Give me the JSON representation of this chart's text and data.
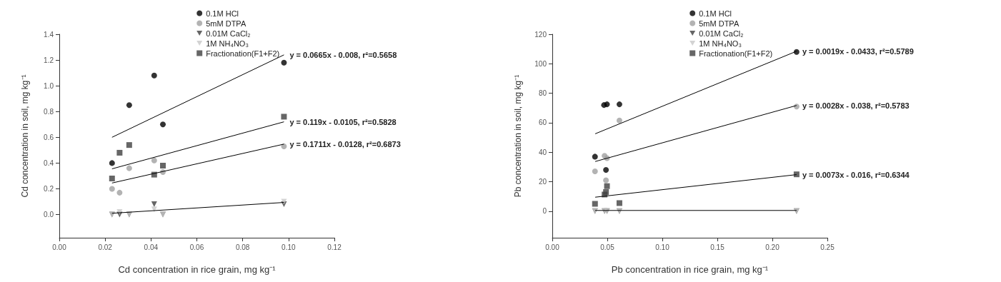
{
  "chart_data": [
    {
      "type": "scatter",
      "xlabel": "Cd concentration in rice grain, mg kg⁻¹",
      "ylabel": "Cd concentration in soil, mg kg⁻¹",
      "xlim": [
        0,
        0.12
      ],
      "ylim": [
        -0.18,
        1.4
      ],
      "xticks": [
        {
          "value": 0,
          "label": "0.00"
        },
        {
          "value": 0.02,
          "label": "0.02"
        },
        {
          "value": 0.04,
          "label": "0.04"
        },
        {
          "value": 0.06,
          "label": "0.06"
        },
        {
          "value": 0.08,
          "label": "0.08"
        },
        {
          "value": 0.1,
          "label": "0.10"
        },
        {
          "value": 0.12,
          "label": "0.12"
        }
      ],
      "yticks": [
        {
          "value": 0,
          "label": "0.0"
        },
        {
          "value": 0.2,
          "label": "0.2"
        },
        {
          "value": 0.4,
          "label": "0.4"
        },
        {
          "value": 0.6,
          "label": "0.6"
        },
        {
          "value": 0.8,
          "label": "0.8"
        },
        {
          "value": 1,
          "label": "1.0"
        },
        {
          "value": 1.2,
          "label": "1.2"
        },
        {
          "value": 1.4,
          "label": "1.4"
        }
      ],
      "grid": false,
      "legend": "top",
      "series": [
        {
          "name": "0.1M HCl",
          "color": "#000000",
          "marker": "circle",
          "x": [
            0.023,
            0.0305,
            0.0414,
            0.0452,
            0.098
          ],
          "values": [
            0.4,
            0.85,
            1.08,
            0.7,
            1.18
          ]
        },
        {
          "name": "5mM DTPA",
          "color": "#a0a0a0",
          "marker": "circle",
          "x": [
            0.023,
            0.0263,
            0.0305,
            0.0414,
            0.0452,
            0.098
          ],
          "values": [
            0.2,
            0.17,
            0.36,
            0.42,
            0.33,
            0.53
          ]
        },
        {
          "name": "0.01M CaCl₂",
          "color": "#404040",
          "marker": "triangle",
          "x": [
            0.023,
            0.0263,
            0.0305,
            0.0414,
            0.0452,
            0.098
          ],
          "values": [
            0,
            0,
            0,
            0.08,
            0,
            0.08
          ]
        },
        {
          "name": "1M NH₄NO₃",
          "color": "#c8c8c8",
          "marker": "triangle",
          "x": [
            0.023,
            0.0263,
            0.0305,
            0.0414,
            0.0452,
            0.098
          ],
          "values": [
            0,
            0.02,
            0,
            0.04,
            0,
            0.1
          ]
        },
        {
          "name": "Fractionation(F1+F2)",
          "color": "#404040",
          "marker": "square",
          "x": [
            0.023,
            0.0263,
            0.0305,
            0.0414,
            0.0452,
            0.098
          ],
          "values": [
            0.28,
            0.48,
            0.54,
            0.31,
            0.38,
            0.76
          ]
        },
        {
          "type": "line",
          "color": "#000000",
          "marker": "none",
          "x": [
            0.023,
            0.098
          ],
          "values": [
            0.6,
            1.24
          ]
        },
        {
          "type": "line",
          "color": "#000000",
          "marker": "none",
          "x": [
            0.023,
            0.098
          ],
          "values": [
            0.355,
            0.72
          ]
        },
        {
          "type": "line",
          "color": "#000000",
          "marker": "none",
          "x": [
            0.023,
            0.098
          ],
          "values": [
            0.245,
            0.547
          ]
        },
        {
          "type": "line",
          "color": "#000000",
          "marker": "none",
          "x": [
            0.023,
            0.098
          ],
          "values": [
            0.01,
            0.094
          ]
        }
      ],
      "annotations": [
        "y = 0.0665x - 0.008, r²=0.5658",
        "y = 0.119x - 0.0105, r²=0.5828",
        "y = 0.1711x - 0.0128, r²=0.6873"
      ]
    },
    {
      "type": "scatter",
      "xlabel": "Pb concentration in rice grain, mg kg⁻¹",
      "ylabel": "Pb concentration in soil, mg kg⁻¹",
      "xlim": [
        0,
        0.25
      ],
      "ylim": [
        -18,
        120
      ],
      "xticks": [
        {
          "value": 0,
          "label": "0.00"
        },
        {
          "value": 0.05,
          "label": "0.05"
        },
        {
          "value": 0.1,
          "label": "0.10"
        },
        {
          "value": 0.15,
          "label": "0.15"
        },
        {
          "value": 0.2,
          "label": "0.20"
        },
        {
          "value": 0.25,
          "label": "0.25"
        }
      ],
      "yticks": [
        0,
        20,
        40,
        60,
        80,
        100,
        120
      ],
      "grid": false,
      "legend": "top",
      "series": [
        {
          "name": "0.1M HCl",
          "color": "#000000",
          "marker": "circle",
          "x": [
            0.0388,
            0.047,
            0.0497,
            0.0488,
            0.061,
            0.222
          ],
          "values": [
            37,
            72,
            72.5,
            28,
            72.5,
            108
          ]
        },
        {
          "name": "5mM DTPA",
          "color": "#a0a0a0",
          "marker": "circle",
          "x": [
            0.0388,
            0.0475,
            0.0497,
            0.0488,
            0.061,
            0.222
          ],
          "values": [
            27,
            37.6,
            36,
            21,
            61.5,
            71
          ]
        },
        {
          "name": "0.01M CaCl₂",
          "color": "#404040",
          "marker": "triangle",
          "x": [
            0.0388,
            0.0475,
            0.0497,
            0.061,
            0.222
          ],
          "values": [
            0,
            0,
            0,
            0,
            0
          ]
        },
        {
          "name": "1M NH₄NO₃",
          "color": "#c8c8c8",
          "marker": "triangle",
          "x": [
            0.0388,
            0.0475,
            0.0497,
            0.061,
            0.222
          ],
          "values": [
            0,
            0,
            0,
            0,
            0
          ]
        },
        {
          "name": "Fractionation(F1+F2)",
          "color": "#404040",
          "marker": "square",
          "x": [
            0.0388,
            0.0475,
            0.0488,
            0.0497,
            0.061,
            0.222
          ],
          "values": [
            5,
            11.3,
            13,
            17,
            5.5,
            25
          ]
        },
        {
          "type": "line",
          "color": "#000000",
          "marker": "none",
          "x": [
            0.039,
            0.222
          ],
          "values": [
            52.5,
            108.5
          ]
        },
        {
          "type": "line",
          "color": "#000000",
          "marker": "none",
          "x": [
            0.039,
            0.222
          ],
          "values": [
            33.7,
            71.7
          ]
        },
        {
          "type": "line",
          "color": "#000000",
          "marker": "none",
          "x": [
            0.039,
            0.222
          ],
          "values": [
            9.5,
            24.8
          ]
        },
        {
          "type": "line",
          "color": "#000000",
          "marker": "none",
          "x": [
            0.039,
            0.222
          ],
          "values": [
            0.5,
            0.5
          ]
        }
      ],
      "annotations": [
        "y = 0.0019x - 0.0433, r²=0.5789",
        "y = 0.0028x - 0.038, r²=0.5783",
        "y = 0.0073x - 0.016, r²=0.6344"
      ]
    }
  ]
}
